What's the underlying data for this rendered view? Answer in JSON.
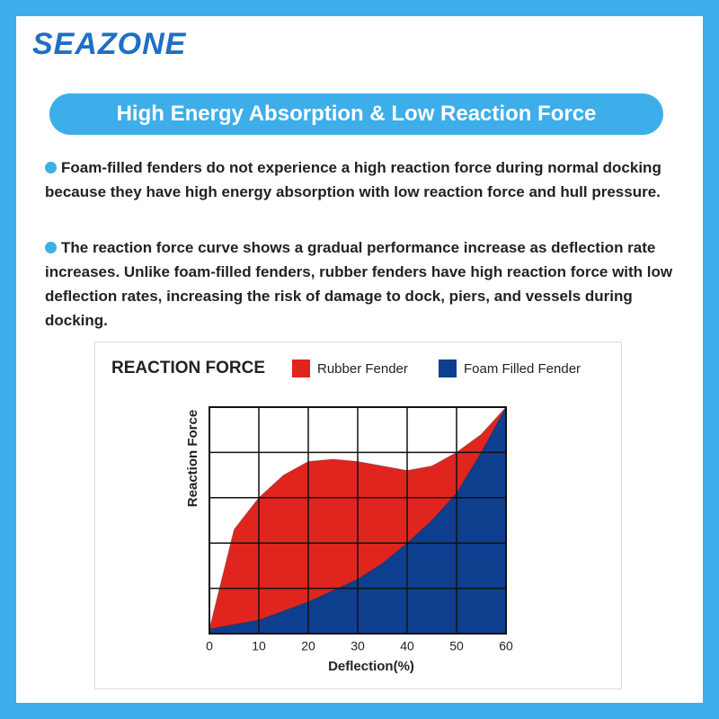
{
  "logo": "SEAZONE",
  "banner": "High Energy Absorption & Low Reaction Force",
  "paragraphs": [
    "Foam-filled fenders do not experience a high reaction force during normal docking because they have high energy absorption with low reaction force and hull pressure.",
    "The reaction force curve shows a gradual performance increase as deflection rate increases. Unlike foam-filled fenders, rubber fenders have high reaction force with low deflection rates, increasing the risk of damage to dock, piers, and vessels during docking."
  ],
  "chart_data": {
    "type": "area",
    "title": "REACTION FORCE",
    "x_label": "Deflection(%)",
    "y_label": "Reaction Force",
    "x": [
      0,
      5,
      10,
      15,
      20,
      25,
      30,
      35,
      40,
      45,
      50,
      55,
      60
    ],
    "series": [
      {
        "name": "Rubber Fender",
        "color": "#e0251f",
        "values": [
          0.1,
          2.3,
          3.0,
          3.5,
          3.8,
          3.85,
          3.8,
          3.7,
          3.6,
          3.7,
          4.0,
          4.4,
          5.0
        ]
      },
      {
        "name": "Foam Filled Fender",
        "color": "#0e3f8f",
        "values": [
          0.1,
          0.2,
          0.3,
          0.5,
          0.7,
          0.95,
          1.2,
          1.55,
          2.0,
          2.5,
          3.1,
          4.0,
          5.0
        ]
      }
    ],
    "xlim": [
      0,
      60
    ],
    "xticks": [
      0,
      10,
      20,
      30,
      40,
      50,
      60
    ],
    "ylim": [
      0,
      5
    ],
    "grid": true
  }
}
